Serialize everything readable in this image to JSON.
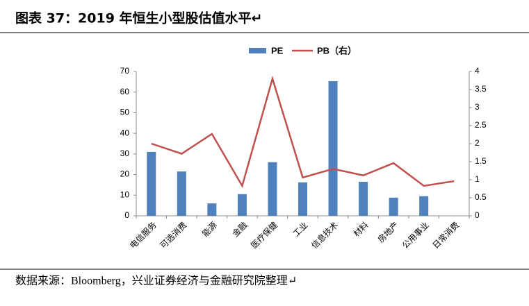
{
  "title": "图表 37：2019 年恒生小型股估值水平↵",
  "source": "数据来源：Bloomberg，兴业证券经济与金融研究院整理↵",
  "chart_data": {
    "type": "bar-line",
    "categories": [
      "电信服务",
      "可选消费",
      "能源",
      "金融",
      "医疗保健",
      "工业",
      "信息技术",
      "材料",
      "房地产",
      "公用事业",
      "日常消费"
    ],
    "series": [
      {
        "name": "PE",
        "type": "bar",
        "color": "#4f81bd",
        "values": [
          31,
          21.5,
          6,
          10.5,
          26,
          16.2,
          65.3,
          16.5,
          8.8,
          9.5,
          null
        ]
      },
      {
        "name": "PB（右）",
        "type": "line",
        "axis": "y2",
        "color": "#c0504d",
        "values": [
          2.0,
          1.72,
          2.27,
          0.83,
          3.8,
          1.06,
          1.3,
          1.12,
          1.46,
          0.83,
          0.96
        ]
      }
    ],
    "ylim": [
      0,
      70
    ],
    "yticks": [
      0,
      10,
      20,
      30,
      40,
      50,
      60,
      70
    ],
    "y2lim": [
      0,
      4
    ],
    "y2ticks": [
      0,
      0.5,
      1,
      1.5,
      2,
      2.5,
      3,
      3.5,
      4
    ],
    "grid": false,
    "legend": "top"
  }
}
